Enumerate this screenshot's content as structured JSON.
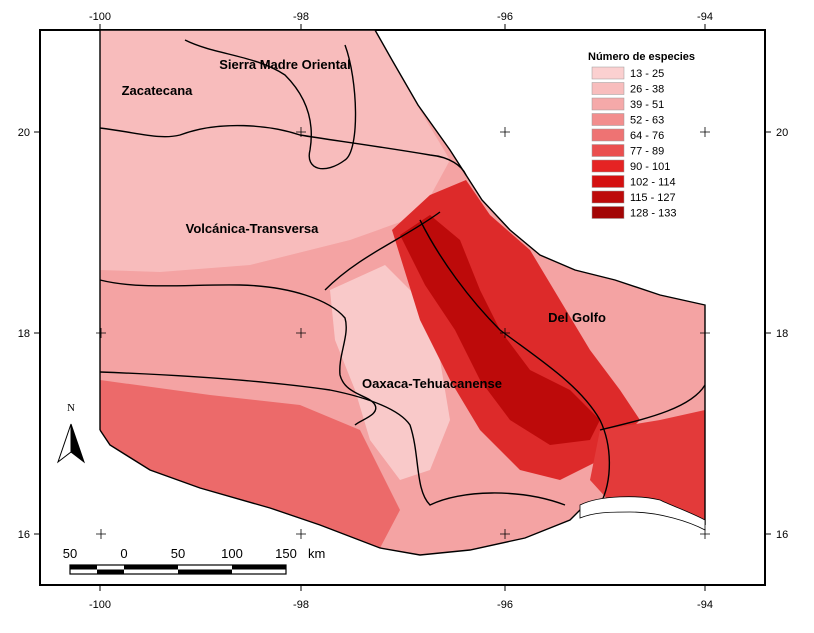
{
  "lon_ticks_top": [
    "-100",
    "-98",
    "-96",
    "-94"
  ],
  "lon_ticks_bottom": [
    "-100",
    "-98",
    "-96",
    "-94"
  ],
  "lat_ticks_left": [
    "20",
    "18",
    "16"
  ],
  "lat_ticks_right": [
    "20",
    "18",
    "16"
  ],
  "regions": [
    "Sierra Madre Oriental",
    "Zacatecana",
    "Volcánica-Transversa",
    "Del Golfo",
    "Oaxaca-Tehuacanense"
  ],
  "legend": {
    "title": "Número de especies",
    "classes": [
      {
        "label": "13 - 25",
        "color": "#fbd0d0"
      },
      {
        "label": "26 - 38",
        "color": "#f8bdbd"
      },
      {
        "label": "39 - 51",
        "color": "#f5a9a9"
      },
      {
        "label": "52 - 63",
        "color": "#f28e8e"
      },
      {
        "label": "64 - 76",
        "color": "#ee7373"
      },
      {
        "label": "77 - 89",
        "color": "#ea4f4f"
      },
      {
        "label": "90 - 101",
        "color": "#e52323"
      },
      {
        "label": "102 - 114",
        "color": "#d41010"
      },
      {
        "label": "115 - 127",
        "color": "#bd0a0a"
      },
      {
        "label": "128 - 133",
        "color": "#a30505"
      }
    ]
  },
  "scale_bar": {
    "labels": [
      "50",
      "0",
      "50",
      "100",
      "150"
    ],
    "unit": "km"
  },
  "north_arrow": {
    "label": "N",
    "icon": "north-arrow-icon"
  }
}
